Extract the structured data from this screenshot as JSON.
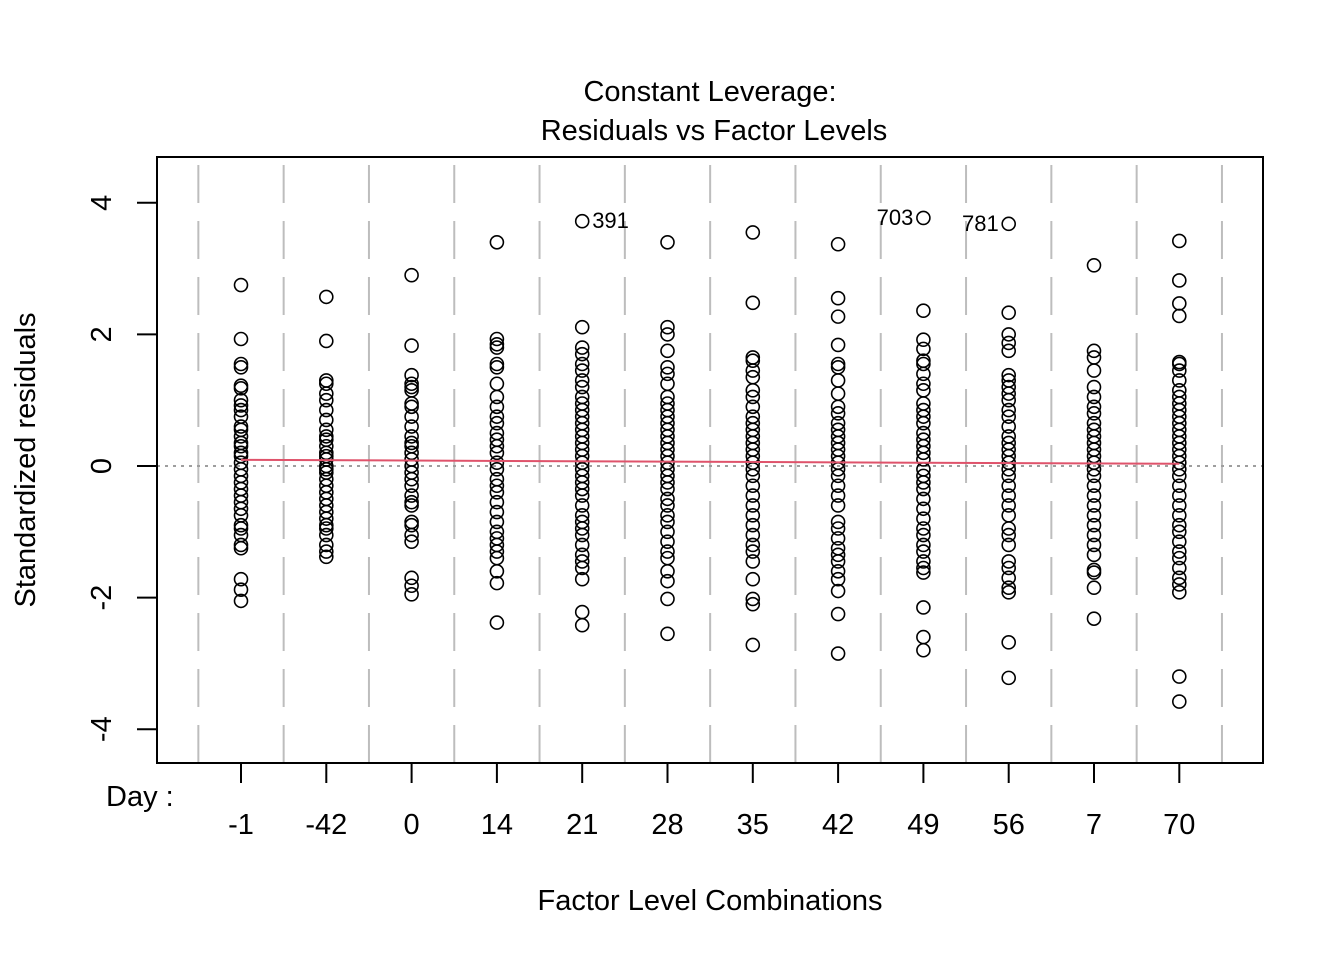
{
  "chart_data": {
    "type": "scatter",
    "title": "Constant Leverage:",
    "subtitle": "Residuals vs Factor Levels",
    "xlabel": "Factor Level Combinations",
    "ylabel": "Standardized residuals",
    "factor_label": "Day :",
    "categories": [
      "-1",
      "-42",
      "0",
      "14",
      "21",
      "28",
      "35",
      "42",
      "49",
      "56",
      "7",
      "70"
    ],
    "ylim": [
      -4.5,
      4.6
    ],
    "yticks": [
      -4,
      -2,
      0,
      2,
      4
    ],
    "grid": "vertical dashed separators between factor levels",
    "series": [
      {
        "values": [
          [
            2.75,
            1.93,
            1.55,
            1.5,
            1.22,
            1.18,
            1.0,
            0.92,
            0.85,
            0.75,
            0.6,
            0.55,
            0.45,
            0.35,
            0.3,
            0.2,
            0.15,
            0.05,
            -0.05,
            -0.15,
            -0.25,
            -0.35,
            -0.45,
            -0.55,
            -0.65,
            -0.75,
            -0.9,
            -0.95,
            -1.05,
            -1.2,
            -1.25,
            -1.72,
            -1.88,
            -2.05
          ],
          [
            2.57,
            1.9,
            1.3,
            1.25,
            1.1,
            1.0,
            0.85,
            0.7,
            0.55,
            0.45,
            0.4,
            0.3,
            0.2,
            0.15,
            0.1,
            0.0,
            -0.05,
            -0.1,
            -0.2,
            -0.3,
            -0.4,
            -0.5,
            -0.6,
            -0.7,
            -0.8,
            -0.9,
            -0.95,
            -1.05,
            -1.2,
            -1.3,
            -1.38
          ],
          [
            2.9,
            1.83,
            1.38,
            1.25,
            1.2,
            1.15,
            0.95,
            0.9,
            0.75,
            0.6,
            0.45,
            0.35,
            0.3,
            0.2,
            0.1,
            0.0,
            -0.1,
            -0.2,
            -0.3,
            -0.45,
            -0.55,
            -0.6,
            -0.85,
            -0.9,
            -1.05,
            -1.15,
            -1.7,
            -1.82,
            -1.95
          ],
          [
            3.4,
            1.93,
            1.85,
            1.8,
            1.55,
            1.5,
            1.25,
            1.05,
            0.9,
            0.75,
            0.65,
            0.5,
            0.4,
            0.3,
            0.2,
            0.05,
            -0.05,
            -0.2,
            -0.3,
            -0.4,
            -0.55,
            -0.7,
            -0.85,
            -1.0,
            -1.1,
            -1.2,
            -1.3,
            -1.4,
            -1.6,
            -1.78,
            -2.38
          ],
          [
            3.72,
            2.11,
            1.8,
            1.7,
            1.55,
            1.45,
            1.3,
            1.2,
            1.05,
            0.95,
            0.85,
            0.75,
            0.65,
            0.55,
            0.45,
            0.35,
            0.25,
            0.15,
            0.05,
            -0.05,
            -0.15,
            -0.25,
            -0.35,
            -0.45,
            -0.6,
            -0.75,
            -0.85,
            -0.95,
            -1.05,
            -1.2,
            -1.35,
            -1.45,
            -1.55,
            -1.72,
            -2.22,
            -2.42
          ],
          [
            3.4,
            2.11,
            2.0,
            1.75,
            1.5,
            1.4,
            1.25,
            1.05,
            0.95,
            0.85,
            0.75,
            0.65,
            0.55,
            0.45,
            0.35,
            0.25,
            0.15,
            0.05,
            -0.05,
            -0.15,
            -0.25,
            -0.35,
            -0.5,
            -0.6,
            -0.75,
            -0.85,
            -1.0,
            -1.15,
            -1.3,
            -1.4,
            -1.6,
            -1.75,
            -2.02,
            -2.55
          ],
          [
            3.55,
            2.48,
            1.65,
            1.6,
            1.45,
            1.35,
            1.15,
            1.05,
            0.9,
            0.75,
            0.65,
            0.55,
            0.45,
            0.35,
            0.25,
            0.15,
            0.05,
            -0.05,
            -0.15,
            -0.3,
            -0.45,
            -0.6,
            -0.75,
            -0.9,
            -1.05,
            -1.2,
            -1.3,
            -1.45,
            -1.72,
            -2.02,
            -2.1,
            -2.72
          ],
          [
            3.37,
            2.55,
            2.27,
            1.84,
            1.55,
            1.5,
            1.3,
            1.1,
            0.9,
            0.8,
            0.65,
            0.55,
            0.45,
            0.35,
            0.25,
            0.15,
            0.05,
            -0.05,
            -0.15,
            -0.3,
            -0.45,
            -0.6,
            -0.85,
            -0.95,
            -1.1,
            -1.25,
            -1.35,
            -1.45,
            -1.6,
            -1.72,
            -1.9,
            -2.25,
            -2.85
          ],
          [
            3.77,
            2.36,
            1.92,
            1.78,
            1.6,
            1.55,
            1.4,
            1.25,
            1.15,
            0.95,
            0.85,
            0.75,
            0.65,
            0.5,
            0.4,
            0.3,
            0.2,
            0.1,
            -0.05,
            -0.15,
            -0.25,
            -0.35,
            -0.5,
            -0.65,
            -0.8,
            -0.95,
            -1.05,
            -1.2,
            -1.3,
            -1.45,
            -1.55,
            -1.62,
            -2.15,
            -2.6,
            -2.8
          ],
          [
            3.68,
            2.33,
            2.0,
            1.87,
            1.75,
            1.38,
            1.3,
            1.2,
            1.1,
            1.0,
            0.85,
            0.75,
            0.6,
            0.45,
            0.35,
            0.25,
            0.15,
            0.05,
            -0.05,
            -0.15,
            -0.3,
            -0.45,
            -0.6,
            -0.75,
            -0.95,
            -1.05,
            -1.2,
            -1.45,
            -1.55,
            -1.7,
            -1.85,
            -1.92,
            -2.68,
            -3.22
          ],
          [
            3.05,
            1.75,
            1.65,
            1.45,
            1.2,
            1.05,
            0.9,
            0.8,
            0.65,
            0.55,
            0.45,
            0.35,
            0.25,
            0.15,
            0.05,
            -0.05,
            -0.15,
            -0.3,
            -0.45,
            -0.6,
            -0.75,
            -0.9,
            -1.05,
            -1.2,
            -1.35,
            -1.58,
            -1.62,
            -1.85,
            -2.32
          ],
          [
            3.42,
            2.82,
            2.47,
            2.28,
            1.58,
            1.55,
            1.45,
            1.3,
            1.15,
            1.05,
            0.95,
            0.85,
            0.75,
            0.65,
            0.55,
            0.45,
            0.35,
            0.25,
            0.15,
            0.05,
            -0.05,
            -0.15,
            -0.3,
            -0.45,
            -0.6,
            -0.75,
            -0.9,
            -1.0,
            -1.15,
            -1.3,
            -1.4,
            -1.55,
            -1.7,
            -1.8,
            -1.92,
            -3.2,
            -3.58
          ]
        ]
      }
    ],
    "smoother_color": "#DF536B",
    "annotations": [
      {
        "label": "391",
        "category": "21",
        "value": 3.72
      },
      {
        "label": "703",
        "category": "49",
        "value": 3.77
      },
      {
        "label": "781",
        "category": "56",
        "value": 3.68
      }
    ]
  }
}
